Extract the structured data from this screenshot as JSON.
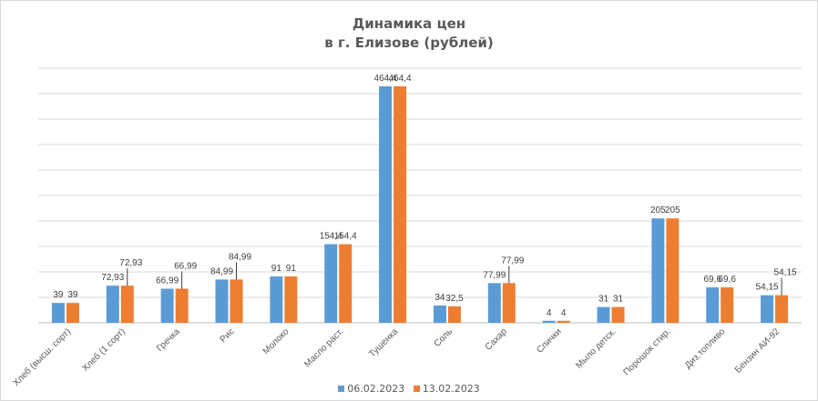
{
  "chart_data": {
    "type": "bar",
    "title": "Динамика цен",
    "subtitle": "в г. Елизове (рублей)",
    "categories": [
      "Хлеб (высш. сорт)",
      "Хлеб (1 сорт)",
      "Гречка",
      "Рис",
      "Молоко",
      "Масло раст.",
      "Тушенка",
      "Соль",
      "Сахар",
      "Спички",
      "Мыло детск.",
      "Порошок стир.",
      "Диз.топливо",
      "Бензин АИ-92"
    ],
    "series": [
      {
        "name": "06.02.2023",
        "color": "#5b9bd5",
        "values": [
          39,
          72.93,
          66.99,
          84.99,
          91,
          154.4,
          464.4,
          34,
          77.99,
          4,
          31,
          205,
          69.6,
          54.15
        ],
        "labels": [
          "39",
          "72,93",
          "66,99",
          "84,99",
          "91",
          "154,4",
          "464,4",
          "34",
          "77,99",
          "4",
          "31",
          "205",
          "69,6",
          "54,15"
        ]
      },
      {
        "name": "13.02.2023",
        "color": "#ed7d31",
        "values": [
          39,
          72.93,
          66.99,
          84.99,
          91,
          154.4,
          464.4,
          32.5,
          77.99,
          4,
          31,
          205,
          69.6,
          54.15
        ],
        "labels": [
          "39",
          "72,93",
          "66,99",
          "84,99",
          "91",
          "154,4",
          "464,4",
          "32,5",
          "77,99",
          "4",
          "31",
          "205",
          "69,6",
          "54,15"
        ]
      }
    ],
    "ylim": [
      0,
      500
    ],
    "ygrid_step": 50,
    "grid": true,
    "legend_position": "bottom"
  }
}
